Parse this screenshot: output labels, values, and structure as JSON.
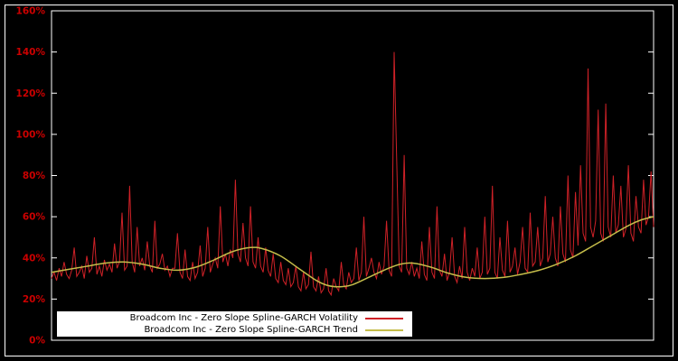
{
  "chart_data": {
    "type": "line",
    "title": "",
    "xlabel": "",
    "ylabel": "",
    "ylim": [
      0,
      160
    ],
    "yticks": [
      "0%",
      "20%",
      "40%",
      "60%",
      "80%",
      "100%",
      "120%",
      "140%",
      "160%"
    ],
    "grid": false,
    "legend_position": "bottom-left",
    "background_color": "#000000",
    "frame_color": "#ffffff",
    "tick_label_color": "#cc0000",
    "series": [
      {
        "name": "Broadcom Inc - Zero Slope Spline-GARCH Volatility",
        "color": "#cf2127",
        "values": [
          30,
          33,
          29,
          35,
          31,
          38,
          32,
          30,
          34,
          45,
          31,
          33,
          36,
          30,
          41,
          33,
          35,
          50,
          32,
          36,
          31,
          39,
          34,
          37,
          33,
          47,
          35,
          38,
          62,
          34,
          36,
          75,
          38,
          33,
          55,
          36,
          40,
          34,
          48,
          36,
          33,
          58,
          35,
          37,
          42,
          34,
          36,
          31,
          35,
          35,
          52,
          33,
          30,
          44,
          31,
          29,
          38,
          30,
          33,
          46,
          31,
          35,
          55,
          33,
          37,
          40,
          35,
          65,
          38,
          42,
          36,
          44,
          40,
          78,
          42,
          38,
          57,
          40,
          36,
          65,
          38,
          35,
          50,
          36,
          33,
          45,
          34,
          31,
          42,
          30,
          28,
          38,
          29,
          27,
          35,
          26,
          28,
          36,
          26,
          24,
          33,
          25,
          27,
          43,
          26,
          24,
          31,
          23,
          25,
          35,
          24,
          22,
          30,
          26,
          24,
          38,
          27,
          25,
          33,
          28,
          30,
          45,
          29,
          33,
          60,
          31,
          35,
          40,
          33,
          30,
          38,
          32,
          36,
          58,
          34,
          31,
          140,
          88,
          36,
          33,
          90,
          35,
          32,
          38,
          31,
          35,
          30,
          48,
          32,
          29,
          55,
          33,
          30,
          65,
          34,
          31,
          42,
          29,
          33,
          50,
          31,
          28,
          36,
          30,
          55,
          33,
          29,
          35,
          31,
          45,
          30,
          33,
          60,
          32,
          35,
          75,
          33,
          30,
          50,
          34,
          31,
          58,
          33,
          36,
          45,
          32,
          38,
          55,
          35,
          33,
          62,
          36,
          38,
          55,
          36,
          40,
          70,
          38,
          42,
          60,
          40,
          36,
          65,
          42,
          38,
          80,
          44,
          40,
          72,
          46,
          85,
          52,
          48,
          132,
          55,
          50,
          58,
          112,
          52,
          48,
          115,
          55,
          50,
          80,
          52,
          56,
          75,
          50,
          54,
          85,
          52,
          48,
          70,
          55,
          52,
          78,
          56,
          60,
          82,
          55
        ]
      },
      {
        "name": "Broadcom Inc - Zero Slope Spline-GARCH Trend",
        "color": "#c5bd4a",
        "x": [
          0,
          0.03,
          0.06,
          0.09,
          0.12,
          0.15,
          0.18,
          0.21,
          0.24,
          0.27,
          0.3,
          0.33,
          0.35,
          0.38,
          0.41,
          0.44,
          0.46,
          0.48,
          0.5,
          0.53,
          0.56,
          0.58,
          0.6,
          0.63,
          0.66,
          0.69,
          0.72,
          0.75,
          0.78,
          0.81,
          0.84,
          0.87,
          0.9,
          0.93,
          0.96,
          0.98,
          1.0
        ],
        "values": [
          33,
          34.5,
          36,
          37.5,
          38,
          37,
          35,
          34,
          35.5,
          39,
          43,
          45,
          44.5,
          41,
          35,
          29,
          26.5,
          26,
          27,
          31,
          35,
          37,
          37.5,
          35.5,
          32.5,
          30.5,
          30,
          30.5,
          32,
          34,
          37,
          41,
          46,
          51,
          56,
          58.5,
          60
        ]
      }
    ]
  },
  "legend": {
    "items": [
      {
        "label": "Broadcom Inc - Zero Slope Spline-GARCH Volatility"
      },
      {
        "label": "Broadcom Inc - Zero Slope Spline-GARCH Trend"
      }
    ]
  }
}
